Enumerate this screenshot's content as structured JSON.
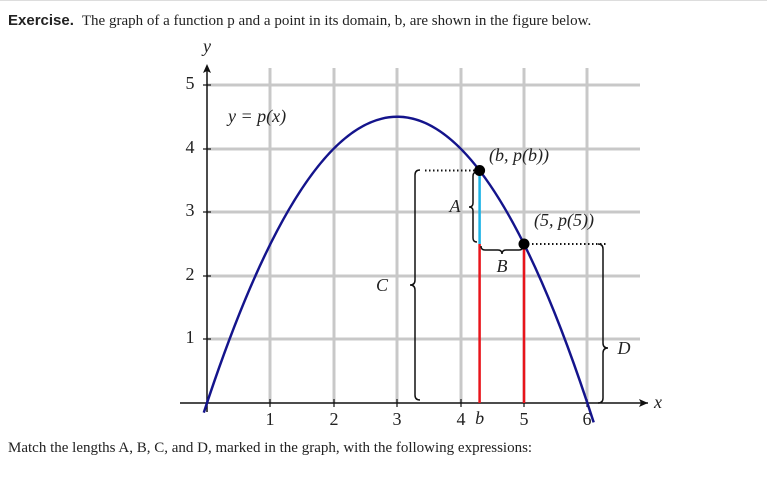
{
  "header": {
    "label": "Exercise.",
    "text": "The graph of a function p and a point in its domain, b, are shown in the figure below."
  },
  "figure": {
    "y_axis_label": "y",
    "x_axis_label": "x",
    "curve_label": "y = p(x)",
    "x_tick_labels": [
      "1",
      "2",
      "3",
      "4",
      "5",
      "6"
    ],
    "y_tick_labels": [
      "1",
      "2",
      "3",
      "4",
      "5"
    ],
    "b_label": "b",
    "point_labels": [
      "(b, p(b))",
      "(5, p(5))"
    ],
    "length_labels": [
      "A",
      "B",
      "C",
      "D"
    ]
  },
  "footer": {
    "text": "Match the lengths A, B, C, and D, marked in the graph, with the following expressions:"
  }
}
